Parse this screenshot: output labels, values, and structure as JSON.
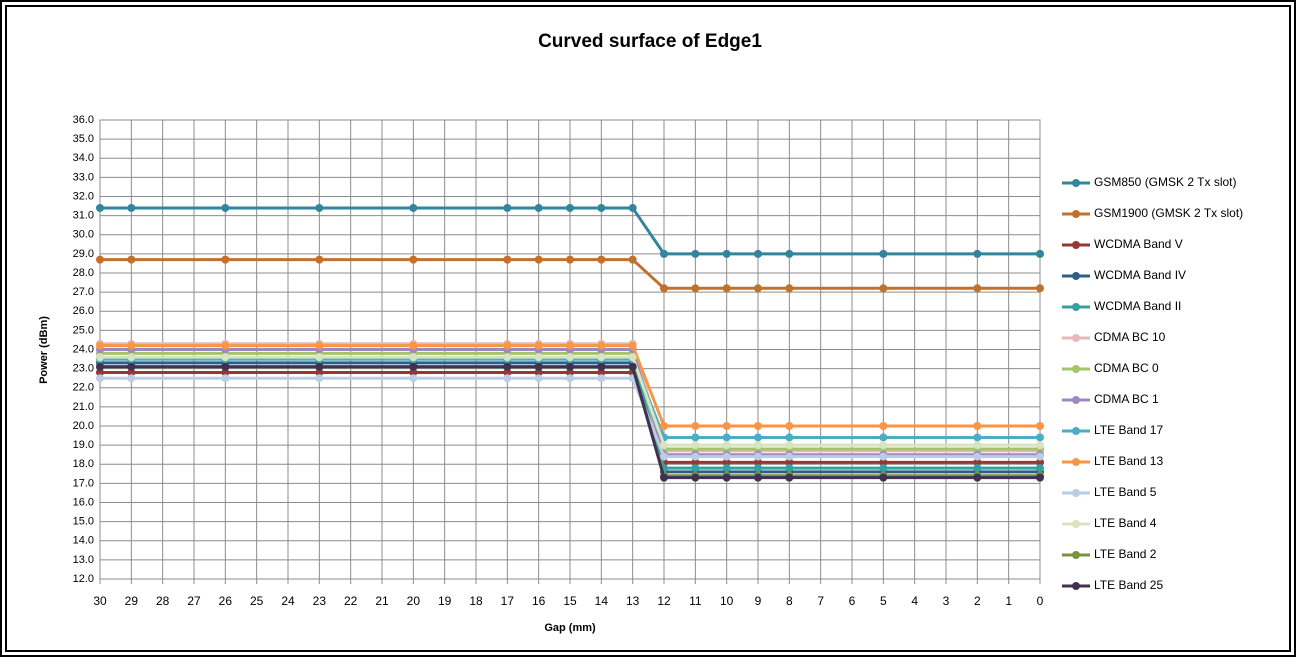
{
  "chart_data": {
    "type": "line",
    "title": "Curved surface of Edge1",
    "x_label": "Gap (mm)",
    "y_label": "Power (dBm)",
    "x": [
      30,
      29,
      26,
      23,
      20,
      17,
      16,
      15,
      14,
      13,
      12,
      11,
      10,
      9,
      8,
      5,
      2,
      0
    ],
    "xlim": [
      30,
      0
    ],
    "xticks": [
      30,
      29,
      28,
      27,
      26,
      25,
      24,
      23,
      22,
      21,
      20,
      19,
      18,
      17,
      16,
      15,
      14,
      13,
      12,
      11,
      10,
      9,
      8,
      7,
      6,
      5,
      4,
      3,
      2,
      1,
      0
    ],
    "ylim": [
      12,
      36
    ],
    "yticks": [
      {
        "value": 12,
        "label": "12.0"
      },
      {
        "value": 13,
        "label": "13.0"
      },
      {
        "value": 14,
        "label": "14.0"
      },
      {
        "value": 15,
        "label": "15.0"
      },
      {
        "value": 16,
        "label": "16.0"
      },
      {
        "value": 17,
        "label": "17.0"
      },
      {
        "value": 18,
        "label": "18.0"
      },
      {
        "value": 19,
        "label": "19.0"
      },
      {
        "value": 20,
        "label": "20.0"
      },
      {
        "value": 21,
        "label": "21.0"
      },
      {
        "value": 22,
        "label": "22.0"
      },
      {
        "value": 23,
        "label": "23.0"
      },
      {
        "value": 24,
        "label": "24.0"
      },
      {
        "value": 25,
        "label": "25.0"
      },
      {
        "value": 26,
        "label": "26.0"
      },
      {
        "value": 27,
        "label": "27.0"
      },
      {
        "value": 28,
        "label": "28.0"
      },
      {
        "value": 29,
        "label": "29.0"
      },
      {
        "value": 30,
        "label": "30.0"
      },
      {
        "value": 31,
        "label": "31.0"
      },
      {
        "value": 32,
        "label": "32.0"
      },
      {
        "value": 33,
        "label": "33.0"
      },
      {
        "value": 34,
        "label": "34.0"
      },
      {
        "value": 35,
        "label": "35.0"
      },
      {
        "value": 36,
        "label": "36.0"
      }
    ],
    "grid": true,
    "legend": "right",
    "series": [
      {
        "name": "GSM850 (GMSK 2 Tx slot)",
        "color": "#31859c",
        "values": [
          31.4,
          31.4,
          31.4,
          31.4,
          31.4,
          31.4,
          31.4,
          31.4,
          31.4,
          31.4,
          29.0,
          29.0,
          29.0,
          29.0,
          29.0,
          29.0,
          29.0,
          29.0
        ]
      },
      {
        "name": "GSM1900 (GMSK 2 Tx slot)",
        "color": "#c0722d",
        "values": [
          28.7,
          28.7,
          28.7,
          28.7,
          28.7,
          28.7,
          28.7,
          28.7,
          28.7,
          28.7,
          27.2,
          27.2,
          27.2,
          27.2,
          27.2,
          27.2,
          27.2,
          27.2
        ]
      },
      {
        "name": "WCDMA Band V",
        "color": "#953735",
        "values": [
          22.8,
          22.8,
          22.8,
          22.8,
          22.8,
          22.8,
          22.8,
          22.8,
          22.8,
          22.8,
          18.1,
          18.1,
          18.1,
          18.1,
          18.1,
          18.1,
          18.1,
          18.1
        ]
      },
      {
        "name": "WCDMA Band IV",
        "color": "#2e5e8a",
        "values": [
          23.3,
          23.3,
          23.3,
          23.3,
          23.3,
          23.3,
          23.3,
          23.3,
          23.3,
          23.3,
          17.6,
          17.6,
          17.6,
          17.6,
          17.6,
          17.6,
          17.6,
          17.6
        ]
      },
      {
        "name": "WCDMA Band II",
        "color": "#35a0a0",
        "values": [
          23.5,
          23.5,
          23.5,
          23.5,
          23.5,
          23.5,
          23.5,
          23.5,
          23.5,
          23.5,
          17.8,
          17.8,
          17.8,
          17.8,
          17.8,
          17.8,
          17.8,
          17.8
        ]
      },
      {
        "name": "CDMA BC 10",
        "color": "#e6b9b8",
        "values": [
          24.3,
          24.3,
          24.3,
          24.3,
          24.3,
          24.3,
          24.3,
          24.3,
          24.3,
          24.3,
          18.7,
          18.7,
          18.7,
          18.7,
          18.7,
          18.7,
          18.7,
          18.7
        ]
      },
      {
        "name": "CDMA BC 0",
        "color": "#a4c46b",
        "values": [
          23.8,
          23.8,
          23.8,
          23.8,
          23.8,
          23.8,
          23.8,
          23.8,
          23.8,
          23.8,
          18.8,
          18.8,
          18.8,
          18.8,
          18.8,
          18.8,
          18.8,
          18.8
        ]
      },
      {
        "name": "CDMA BC 1",
        "color": "#9a8ac0",
        "values": [
          24.0,
          24.0,
          24.0,
          24.0,
          24.0,
          24.0,
          24.0,
          24.0,
          24.0,
          24.0,
          18.5,
          18.5,
          18.5,
          18.5,
          18.5,
          18.5,
          18.5,
          18.5
        ]
      },
      {
        "name": "LTE Band 17",
        "color": "#4bacc6",
        "values": [
          23.5,
          23.5,
          23.5,
          23.5,
          23.5,
          23.5,
          23.5,
          23.5,
          23.5,
          23.5,
          19.4,
          19.4,
          19.4,
          19.4,
          19.4,
          19.4,
          19.4,
          19.4
        ]
      },
      {
        "name": "LTE Band 13",
        "color": "#f79646",
        "values": [
          24.2,
          24.2,
          24.2,
          24.2,
          24.2,
          24.2,
          24.2,
          24.2,
          24.2,
          24.2,
          20.0,
          20.0,
          20.0,
          20.0,
          20.0,
          20.0,
          20.0,
          20.0
        ]
      },
      {
        "name": "LTE Band 5",
        "color": "#b9cde5",
        "values": [
          22.5,
          22.5,
          22.5,
          22.5,
          22.5,
          22.5,
          22.5,
          22.5,
          22.5,
          22.5,
          18.4,
          18.4,
          18.4,
          18.4,
          18.4,
          18.4,
          18.4,
          18.4
        ]
      },
      {
        "name": "LTE Band 4",
        "color": "#d7e4bd",
        "values": [
          23.6,
          23.6,
          23.6,
          23.6,
          23.6,
          23.6,
          23.6,
          23.6,
          23.6,
          23.6,
          19.0,
          19.0,
          19.0,
          19.0,
          19.0,
          19.0,
          19.0,
          19.0
        ]
      },
      {
        "name": "LTE Band 2",
        "color": "#77933c",
        "values": [
          23.1,
          23.1,
          23.1,
          23.1,
          23.1,
          23.1,
          23.1,
          23.1,
          23.1,
          23.1,
          17.4,
          17.4,
          17.4,
          17.4,
          17.4,
          17.4,
          17.4,
          17.4
        ]
      },
      {
        "name": "LTE Band 25",
        "color": "#403152",
        "values": [
          23.1,
          23.1,
          23.1,
          23.1,
          23.1,
          23.1,
          23.1,
          23.1,
          23.1,
          23.1,
          17.3,
          17.3,
          17.3,
          17.3,
          17.3,
          17.3,
          17.3,
          17.3
        ]
      }
    ]
  }
}
